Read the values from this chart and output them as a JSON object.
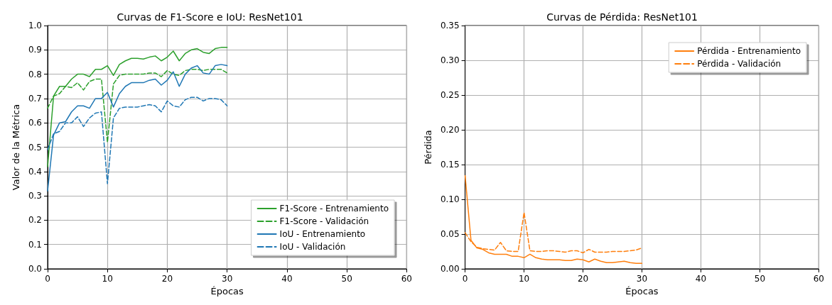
{
  "chart_data": [
    {
      "type": "line",
      "title": "Curvas de F1-Score e IoU: ResNet101",
      "xlabel": "Épocas",
      "ylabel": "Valor de la Métrica",
      "x": [
        0,
        1,
        2,
        3,
        4,
        5,
        6,
        7,
        8,
        9,
        10,
        11,
        12,
        13,
        14,
        15,
        16,
        17,
        18,
        19,
        20,
        21,
        22,
        23,
        24,
        25,
        26,
        27,
        28,
        29,
        30
      ],
      "xlim": [
        0,
        60
      ],
      "xticks": [
        0,
        10,
        20,
        30,
        40,
        50,
        60
      ],
      "ylim": [
        0,
        1
      ],
      "yticks": [
        {
          "value": 0,
          "label": "0.0"
        },
        0.1,
        0.2,
        0.3,
        0.4,
        0.5,
        0.6,
        0.7,
        0.8,
        0.9,
        {
          "value": 1,
          "label": "1.0"
        }
      ],
      "grid": true,
      "legend": "bottom right",
      "marker": "none",
      "series": [
        {
          "name": "F1-Score - Entrenamiento",
          "color": "#2ca02c",
          "line_style": "solid",
          "values": [
            0.42,
            0.71,
            0.75,
            0.75,
            0.78,
            0.8,
            0.8,
            0.79,
            0.82,
            0.82,
            0.835,
            0.795,
            0.84,
            0.855,
            0.865,
            0.865,
            0.862,
            0.87,
            0.875,
            0.855,
            0.87,
            0.895,
            0.855,
            0.885,
            0.9,
            0.905,
            0.89,
            0.885,
            0.905,
            0.91,
            0.91
          ]
        },
        {
          "name": "F1-Score - Validación",
          "color": "#2ca02c",
          "line_style": "dashed",
          "values": [
            0.66,
            0.71,
            0.72,
            0.75,
            0.745,
            0.765,
            0.735,
            0.77,
            0.78,
            0.78,
            0.52,
            0.76,
            0.795,
            0.8,
            0.8,
            0.8,
            0.8,
            0.805,
            0.805,
            0.79,
            0.815,
            0.8,
            0.795,
            0.815,
            0.82,
            0.82,
            0.815,
            0.82,
            0.82,
            0.82,
            0.805
          ]
        },
        {
          "name": "IoU - Entrenamiento",
          "color": "#1f77b4",
          "line_style": "solid",
          "values": [
            0.32,
            0.55,
            0.6,
            0.605,
            0.645,
            0.67,
            0.67,
            0.66,
            0.7,
            0.7,
            0.725,
            0.665,
            0.72,
            0.75,
            0.765,
            0.765,
            0.765,
            0.775,
            0.78,
            0.755,
            0.775,
            0.81,
            0.75,
            0.8,
            0.825,
            0.835,
            0.805,
            0.8,
            0.835,
            0.84,
            0.835
          ]
        },
        {
          "name": "IoU - Validación",
          "color": "#1f77b4",
          "line_style": "dashed",
          "values": [
            0.49,
            0.555,
            0.565,
            0.6,
            0.6,
            0.625,
            0.585,
            0.62,
            0.64,
            0.645,
            0.35,
            0.62,
            0.66,
            0.665,
            0.665,
            0.665,
            0.67,
            0.675,
            0.67,
            0.645,
            0.69,
            0.67,
            0.665,
            0.695,
            0.705,
            0.705,
            0.69,
            0.7,
            0.7,
            0.695,
            0.67
          ]
        }
      ]
    },
    {
      "type": "line",
      "title": "Curvas de Pérdida: ResNet101",
      "xlabel": "Épocas",
      "ylabel": "Pérdida",
      "x": [
        0,
        1,
        2,
        3,
        4,
        5,
        6,
        7,
        8,
        9,
        10,
        11,
        12,
        13,
        14,
        15,
        16,
        17,
        18,
        19,
        20,
        21,
        22,
        23,
        24,
        25,
        26,
        27,
        28,
        29,
        30
      ],
      "xlim": [
        0,
        60
      ],
      "xticks": [
        0,
        10,
        20,
        30,
        40,
        50,
        60
      ],
      "ylim": [
        0,
        0.35
      ],
      "yticks": [
        {
          "value": 0,
          "label": "0.00"
        },
        0.05,
        {
          "value": 0.1,
          "label": "0.10"
        },
        0.15,
        {
          "value": 0.2,
          "label": "0.20"
        },
        0.25,
        {
          "value": 0.3,
          "label": "0.30"
        },
        0.35
      ],
      "grid": true,
      "legend": "top right",
      "marker": "none",
      "series": [
        {
          "name": "Pérdida - Entrenamiento",
          "color": "#ff7f0e",
          "line_style": "solid",
          "values": [
            0.134,
            0.041,
            0.03,
            0.028,
            0.023,
            0.021,
            0.021,
            0.021,
            0.018,
            0.018,
            0.016,
            0.021,
            0.016,
            0.014,
            0.013,
            0.013,
            0.013,
            0.012,
            0.012,
            0.014,
            0.013,
            0.01,
            0.014,
            0.011,
            0.009,
            0.009,
            0.01,
            0.011,
            0.009,
            0.008,
            0.008
          ]
        },
        {
          "name": "Pérdida - Validación",
          "color": "#ff7f0e",
          "line_style": "dashed",
          "values": [
            0.052,
            0.039,
            0.031,
            0.029,
            0.028,
            0.027,
            0.038,
            0.026,
            0.025,
            0.025,
            0.081,
            0.026,
            0.025,
            0.025,
            0.026,
            0.026,
            0.025,
            0.024,
            0.026,
            0.026,
            0.023,
            0.028,
            0.024,
            0.024,
            0.024,
            0.025,
            0.025,
            0.025,
            0.026,
            0.027,
            0.03
          ]
        }
      ]
    }
  ]
}
